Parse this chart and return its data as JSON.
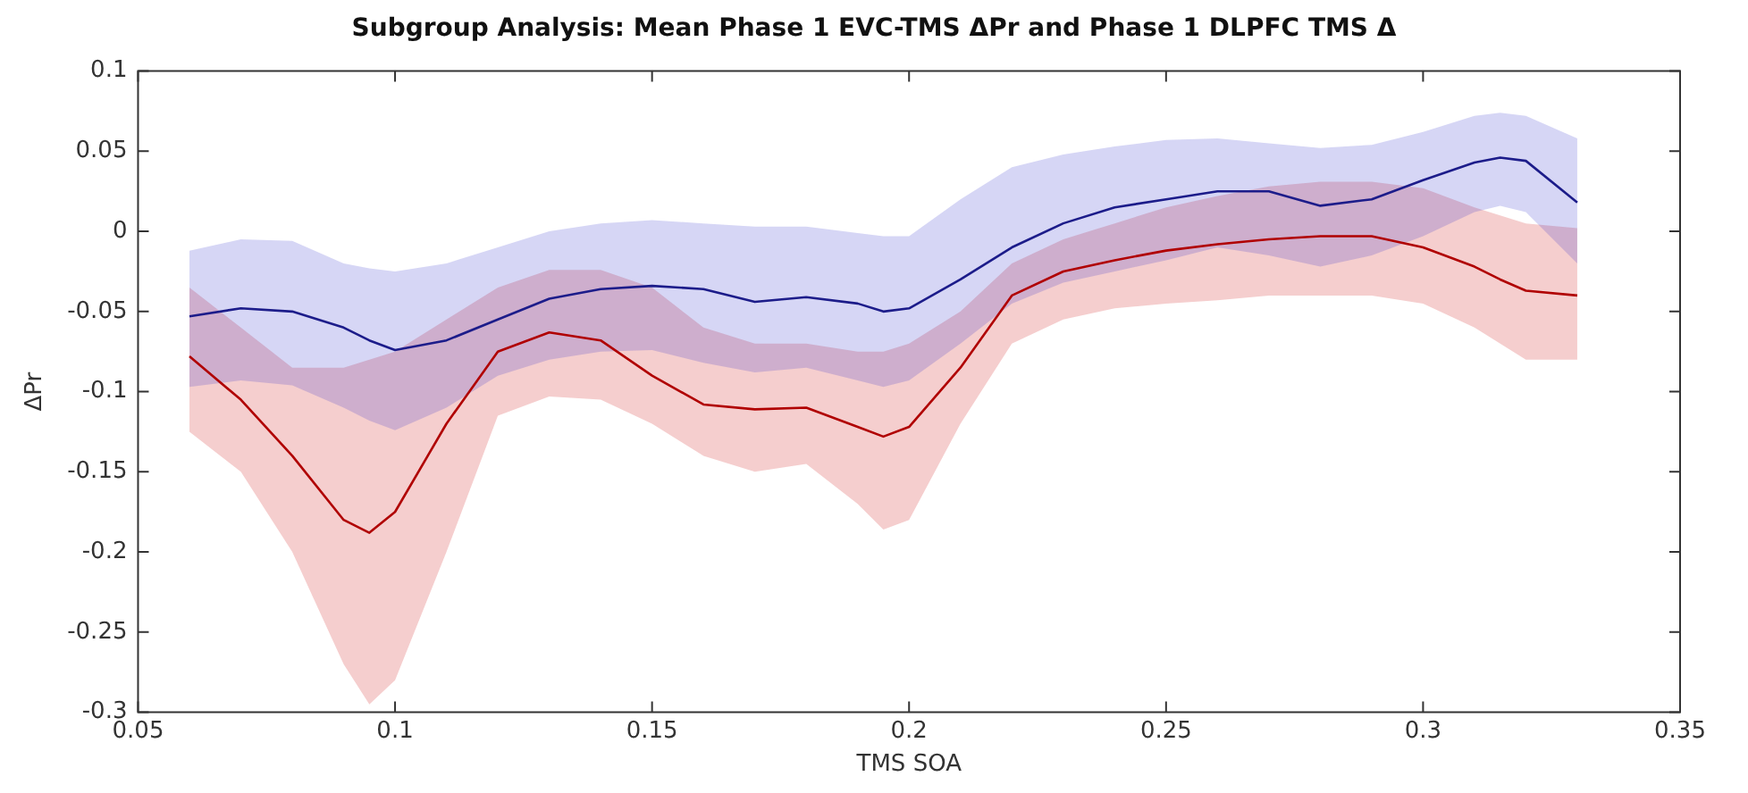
{
  "chart_data": {
    "type": "line",
    "title": "Subgroup Analysis: Mean Phase 1 EVC-TMS ΔPr and Phase 1 DLPFC TMS Δ",
    "xlabel": "TMS SOA",
    "ylabel": "ΔPr",
    "x": [
      0.06,
      0.07,
      0.08,
      0.09,
      0.095,
      0.1,
      0.11,
      0.12,
      0.13,
      0.14,
      0.15,
      0.16,
      0.17,
      0.18,
      0.19,
      0.195,
      0.2,
      0.21,
      0.22,
      0.23,
      0.24,
      0.25,
      0.26,
      0.27,
      0.28,
      0.29,
      0.3,
      0.31,
      0.315,
      0.32,
      0.33
    ],
    "series": [
      {
        "color": "#1c1c8a",
        "values": [
          -0.053,
          -0.048,
          -0.05,
          -0.06,
          -0.068,
          -0.074,
          -0.068,
          -0.055,
          -0.042,
          -0.036,
          -0.034,
          -0.036,
          -0.044,
          -0.041,
          -0.045,
          -0.05,
          -0.048,
          -0.03,
          -0.01,
          0.005,
          0.015,
          0.02,
          0.025,
          0.025,
          0.016,
          0.02,
          0.032,
          0.043,
          0.046,
          0.044,
          0.018
        ],
        "lower": [
          -0.097,
          -0.093,
          -0.096,
          -0.11,
          -0.118,
          -0.124,
          -0.11,
          -0.09,
          -0.08,
          -0.075,
          -0.074,
          -0.082,
          -0.088,
          -0.085,
          -0.093,
          -0.097,
          -0.093,
          -0.07,
          -0.045,
          -0.032,
          -0.025,
          -0.018,
          -0.01,
          -0.015,
          -0.022,
          -0.015,
          -0.003,
          0.012,
          0.016,
          0.012,
          -0.02
        ],
        "upper": [
          -0.012,
          -0.005,
          -0.006,
          -0.02,
          -0.023,
          -0.025,
          -0.02,
          -0.01,
          0,
          0.005,
          0.007,
          0.005,
          0.003,
          0.003,
          -0.001,
          -0.003,
          -0.003,
          0.02,
          0.04,
          0.048,
          0.053,
          0.057,
          0.058,
          0.055,
          0.052,
          0.054,
          0.062,
          0.072,
          0.074,
          0.072,
          0.058
        ]
      },
      {
        "color": "#b00000",
        "values": [
          -0.078,
          -0.105,
          -0.14,
          -0.18,
          -0.188,
          -0.175,
          -0.12,
          -0.075,
          -0.063,
          -0.068,
          -0.09,
          -0.108,
          -0.111,
          -0.11,
          -0.122,
          -0.128,
          -0.122,
          -0.085,
          -0.04,
          -0.025,
          -0.018,
          -0.012,
          -0.008,
          -0.005,
          -0.003,
          -0.003,
          -0.01,
          -0.022,
          -0.03,
          -0.037,
          -0.04
        ],
        "lower": [
          -0.125,
          -0.15,
          -0.2,
          -0.27,
          -0.295,
          -0.28,
          -0.2,
          -0.115,
          -0.103,
          -0.105,
          -0.12,
          -0.14,
          -0.15,
          -0.145,
          -0.17,
          -0.186,
          -0.18,
          -0.12,
          -0.07,
          -0.055,
          -0.048,
          -0.045,
          -0.043,
          -0.04,
          -0.04,
          -0.04,
          -0.045,
          -0.06,
          -0.07,
          -0.08,
          -0.08
        ],
        "upper": [
          -0.035,
          -0.06,
          -0.085,
          -0.085,
          -0.08,
          -0.075,
          -0.055,
          -0.035,
          -0.024,
          -0.024,
          -0.035,
          -0.06,
          -0.07,
          -0.07,
          -0.075,
          -0.075,
          -0.07,
          -0.05,
          -0.02,
          -0.005,
          0.005,
          0.015,
          0.022,
          0.028,
          0.031,
          0.031,
          0.027,
          0.015,
          0.01,
          0.005,
          0.002
        ]
      }
    ],
    "xlim": [
      0.05,
      0.35
    ],
    "xticks": [
      0.05,
      0.1,
      0.15,
      0.2,
      0.25,
      0.3,
      0.35
    ],
    "ylim": [
      -0.3,
      0.1
    ],
    "yticks": [
      -0.3,
      -0.25,
      -0.2,
      -0.15,
      -0.1,
      -0.05,
      0,
      0.05,
      0.1
    ],
    "grid": false,
    "legend": false,
    "marker": "none",
    "line_style": "solid"
  }
}
